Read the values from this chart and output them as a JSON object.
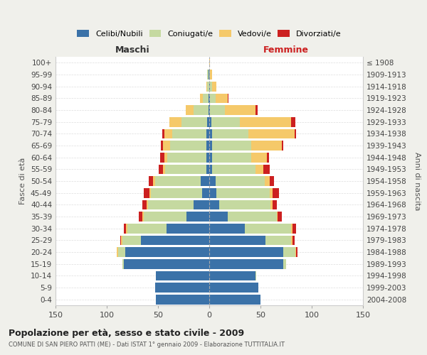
{
  "age_groups": [
    "0-4",
    "5-9",
    "10-14",
    "15-19",
    "20-24",
    "25-29",
    "30-34",
    "35-39",
    "40-44",
    "45-49",
    "50-54",
    "55-59",
    "60-64",
    "65-69",
    "70-74",
    "75-79",
    "80-84",
    "85-89",
    "90-94",
    "95-99",
    "100+"
  ],
  "birth_years": [
    "2004-2008",
    "1999-2003",
    "1994-1998",
    "1989-1993",
    "1984-1988",
    "1979-1983",
    "1974-1978",
    "1969-1973",
    "1964-1968",
    "1959-1963",
    "1954-1958",
    "1949-1953",
    "1944-1948",
    "1939-1943",
    "1934-1938",
    "1929-1933",
    "1924-1928",
    "1919-1923",
    "1914-1918",
    "1909-1913",
    "≤ 1908"
  ],
  "male_celibi": [
    52,
    53,
    52,
    83,
    82,
    67,
    42,
    22,
    15,
    7,
    8,
    3,
    3,
    3,
    3,
    2,
    1,
    1,
    0,
    1,
    0
  ],
  "male_coniugati": [
    0,
    0,
    0,
    2,
    7,
    18,
    38,
    42,
    45,
    50,
    45,
    40,
    38,
    35,
    33,
    25,
    14,
    5,
    2,
    1,
    0
  ],
  "male_vedovi": [
    0,
    0,
    0,
    0,
    1,
    1,
    1,
    1,
    1,
    1,
    2,
    2,
    3,
    7,
    8,
    12,
    8,
    3,
    1,
    0,
    0
  ],
  "male_divorziati": [
    0,
    0,
    0,
    0,
    0,
    1,
    2,
    4,
    4,
    6,
    4,
    4,
    4,
    2,
    2,
    0,
    0,
    0,
    0,
    0,
    0
  ],
  "female_celibi": [
    50,
    48,
    45,
    72,
    72,
    55,
    35,
    18,
    10,
    7,
    6,
    3,
    3,
    3,
    3,
    2,
    1,
    1,
    1,
    0,
    0
  ],
  "female_coniugati": [
    0,
    0,
    1,
    3,
    12,
    25,
    45,
    48,
    50,
    52,
    48,
    42,
    38,
    38,
    35,
    28,
    14,
    5,
    2,
    1,
    0
  ],
  "female_vedovi": [
    0,
    0,
    0,
    0,
    1,
    1,
    1,
    1,
    2,
    3,
    5,
    8,
    15,
    30,
    45,
    50,
    30,
    12,
    4,
    2,
    1
  ],
  "female_divorziati": [
    0,
    0,
    0,
    0,
    1,
    2,
    4,
    4,
    4,
    6,
    4,
    6,
    2,
    1,
    2,
    4,
    2,
    1,
    0,
    0,
    0
  ],
  "colors": {
    "celibi": "#3B72A8",
    "coniugati": "#C5D9A0",
    "vedovi": "#F5C96A",
    "divorziati": "#CC2020"
  },
  "title": "Popolazione per età, sesso e stato civile - 2009",
  "subtitle": "COMUNE DI SAN PIERO PATTI (ME) - Dati ISTAT 1° gennaio 2009 - Elaborazione TUTTITALIA.IT",
  "xlabel_left": "Maschi",
  "xlabel_right": "Femmine",
  "ylabel_left": "Fasce di età",
  "ylabel_right": "Anni di nascita",
  "xlim": 150,
  "background_color": "#f0f0eb",
  "plot_background": "#ffffff"
}
